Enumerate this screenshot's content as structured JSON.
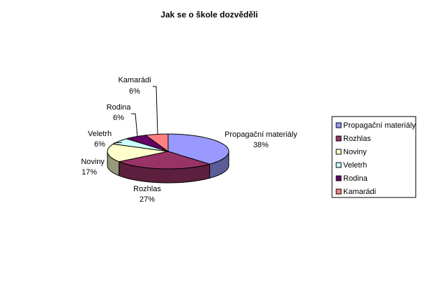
{
  "chart_data": {
    "type": "pie",
    "title": "Jak se o škole dozvěděli",
    "categories": [
      "Propagační materiály",
      "Rozhlas",
      "Noviny",
      "Veletrh",
      "Rodina",
      "Kamarádi"
    ],
    "values": [
      38,
      27,
      17,
      6,
      6,
      6
    ],
    "value_labels": [
      "38%",
      "27%",
      "17%",
      "6%",
      "6%",
      "6%"
    ],
    "colors": [
      "#9999ff",
      "#993366",
      "#ffffcc",
      "#ccffff",
      "#660066",
      "#ff8080"
    ],
    "legend": "right"
  }
}
